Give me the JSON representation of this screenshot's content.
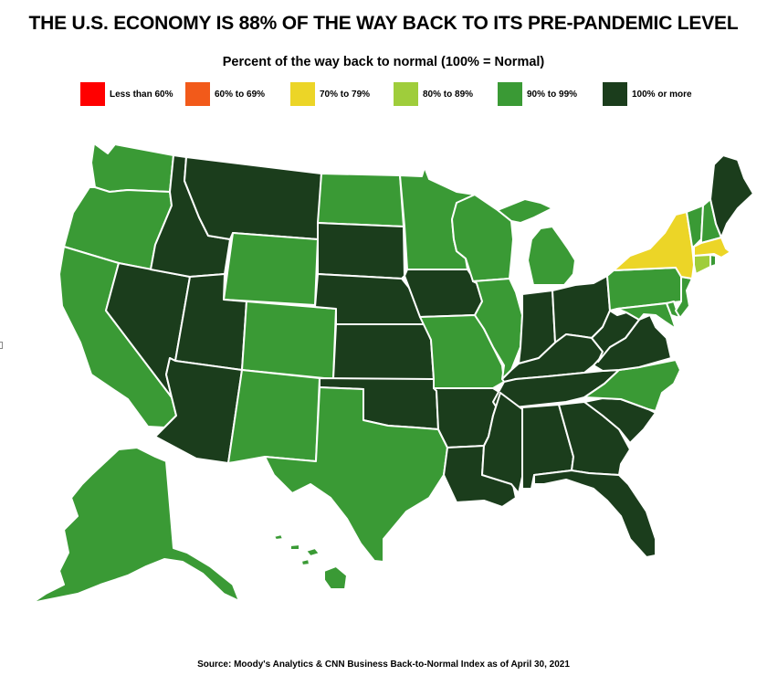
{
  "title": "THE U.S. ECONOMY IS 88% OF THE WAY BACK TO ITS PRE-PANDEMIC LEVEL",
  "subtitle": "Percent of the way back to normal (100% = Normal)",
  "legend": [
    {
      "label": "Less than 60%",
      "color": "#ff0000"
    },
    {
      "label": "60% to 69%",
      "color": "#f25a1a"
    },
    {
      "label": "70% to 79%",
      "color": "#ecd527"
    },
    {
      "label": "80% to 89%",
      "color": "#9fcd3b"
    },
    {
      "label": "90% to 99%",
      "color": "#3a9a35"
    },
    {
      "label": "100% or more",
      "color": "#1b3d1c"
    }
  ],
  "map": {
    "states": [
      {
        "name": "Washington",
        "bucket": "90% to 99%"
      },
      {
        "name": "Oregon",
        "bucket": "90% to 99%"
      },
      {
        "name": "California",
        "bucket": "90% to 99%"
      },
      {
        "name": "Nevada",
        "bucket": "100% or more"
      },
      {
        "name": "Idaho",
        "bucket": "100% or more"
      },
      {
        "name": "Montana",
        "bucket": "100% or more"
      },
      {
        "name": "Wyoming",
        "bucket": "90% to 99%"
      },
      {
        "name": "Utah",
        "bucket": "100% or more"
      },
      {
        "name": "Arizona",
        "bucket": "100% or more"
      },
      {
        "name": "Colorado",
        "bucket": "90% to 99%"
      },
      {
        "name": "New Mexico",
        "bucket": "90% to 99%"
      },
      {
        "name": "North Dakota",
        "bucket": "90% to 99%"
      },
      {
        "name": "South Dakota",
        "bucket": "100% or more"
      },
      {
        "name": "Nebraska",
        "bucket": "100% or more"
      },
      {
        "name": "Kansas",
        "bucket": "100% or more"
      },
      {
        "name": "Oklahoma",
        "bucket": "100% or more"
      },
      {
        "name": "Texas",
        "bucket": "90% to 99%"
      },
      {
        "name": "Minnesota",
        "bucket": "90% to 99%"
      },
      {
        "name": "Iowa",
        "bucket": "100% or more"
      },
      {
        "name": "Missouri",
        "bucket": "90% to 99%"
      },
      {
        "name": "Arkansas",
        "bucket": "100% or more"
      },
      {
        "name": "Louisiana",
        "bucket": "100% or more"
      },
      {
        "name": "Wisconsin",
        "bucket": "90% to 99%"
      },
      {
        "name": "Illinois",
        "bucket": "90% to 99%"
      },
      {
        "name": "Michigan",
        "bucket": "90% to 99%"
      },
      {
        "name": "Indiana",
        "bucket": "100% or more"
      },
      {
        "name": "Ohio",
        "bucket": "100% or more"
      },
      {
        "name": "Kentucky",
        "bucket": "100% or more"
      },
      {
        "name": "Tennessee",
        "bucket": "100% or more"
      },
      {
        "name": "Mississippi",
        "bucket": "100% or more"
      },
      {
        "name": "Alabama",
        "bucket": "100% or more"
      },
      {
        "name": "Georgia",
        "bucket": "100% or more"
      },
      {
        "name": "Florida",
        "bucket": "100% or more"
      },
      {
        "name": "South Carolina",
        "bucket": "100% or more"
      },
      {
        "name": "North Carolina",
        "bucket": "90% to 99%"
      },
      {
        "name": "Virginia",
        "bucket": "100% or more"
      },
      {
        "name": "West Virginia",
        "bucket": "100% or more"
      },
      {
        "name": "Pennsylvania",
        "bucket": "90% to 99%"
      },
      {
        "name": "New York",
        "bucket": "70% to 79%"
      },
      {
        "name": "Vermont",
        "bucket": "90% to 99%"
      },
      {
        "name": "New Hampshire",
        "bucket": "90% to 99%"
      },
      {
        "name": "Maine",
        "bucket": "100% or more"
      },
      {
        "name": "Massachusetts",
        "bucket": "70% to 79%"
      },
      {
        "name": "Rhode Island",
        "bucket": "90% to 99%"
      },
      {
        "name": "Connecticut",
        "bucket": "80% to 89%"
      },
      {
        "name": "New Jersey",
        "bucket": "90% to 99%"
      },
      {
        "name": "Delaware",
        "bucket": "90% to 99%"
      },
      {
        "name": "Maryland",
        "bucket": "90% to 99%"
      },
      {
        "name": "Alaska",
        "bucket": "90% to 99%"
      },
      {
        "name": "Hawaii",
        "bucket": "90% to 99%"
      }
    ]
  },
  "source": "Source: Moody's Analytics & CNN Business Back-to-Normal Index as of April 30, 2021"
}
